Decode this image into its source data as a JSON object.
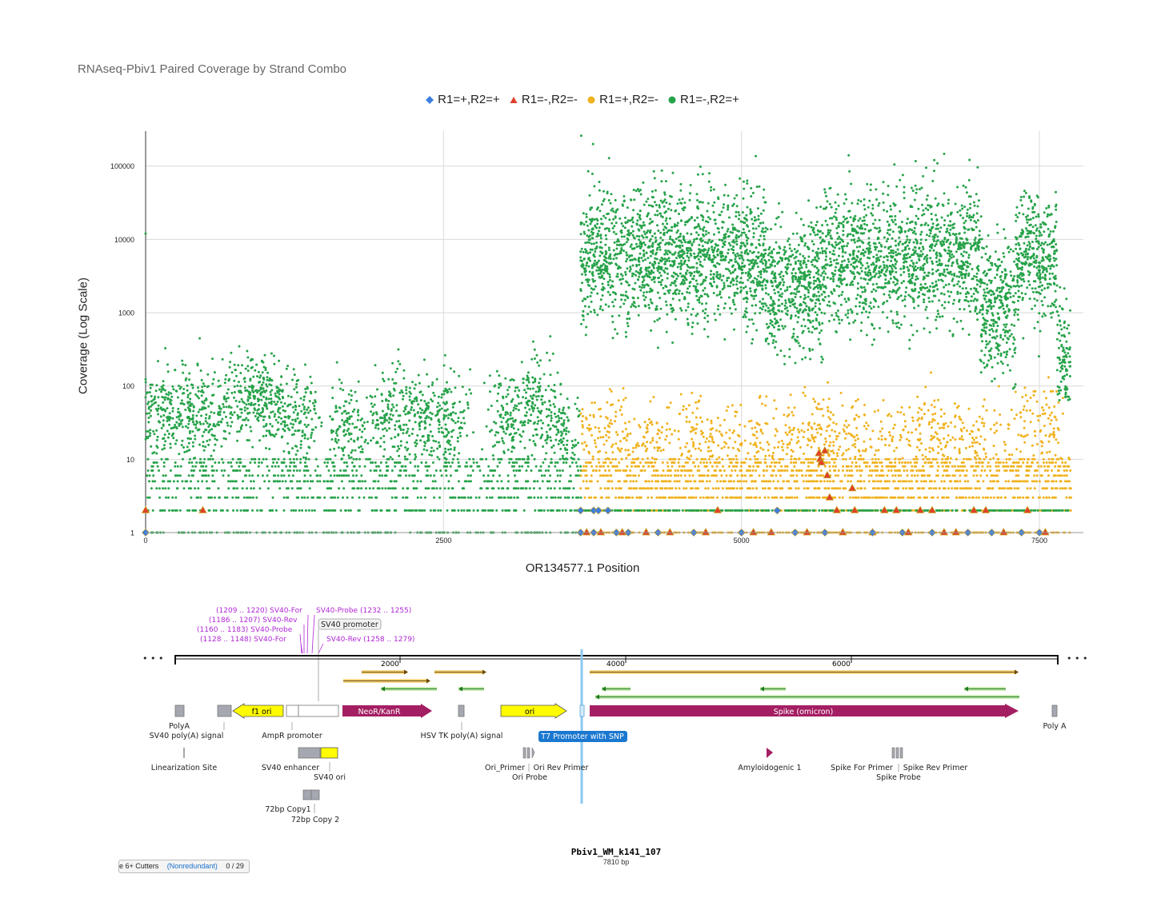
{
  "chart_data": {
    "type": "scatter",
    "title": "RNAseq-Pbiv1 Paired Coverage by Strand Combo",
    "xlabel": "OR134577.1 Position",
    "ylabel": "Coverage (Log Scale)",
    "yscale": "log",
    "xlim": [
      0,
      7810
    ],
    "ylim": [
      1,
      300000
    ],
    "xticks": [
      0,
      2500,
      5000,
      7500
    ],
    "yticks": [
      1,
      10,
      100,
      1000,
      10000,
      100000
    ],
    "grid": true,
    "legend_position": "top-center",
    "series": [
      {
        "name": "R1=+,R2=+",
        "marker": "diamond",
        "color": "#3d7fe0",
        "points": [
          [
            0,
            1
          ],
          [
            3650,
            1
          ],
          [
            3650,
            2
          ],
          [
            3760,
            1
          ],
          [
            3760,
            2
          ],
          [
            3800,
            2
          ],
          [
            3880,
            2
          ],
          [
            3950,
            1
          ],
          [
            4050,
            1
          ],
          [
            4300,
            1
          ],
          [
            4600,
            1
          ],
          [
            5000,
            1
          ],
          [
            5300,
            2
          ],
          [
            5450,
            1
          ],
          [
            5700,
            1
          ],
          [
            6100,
            1
          ],
          [
            6350,
            1
          ],
          [
            6600,
            1
          ],
          [
            6900,
            1
          ],
          [
            7100,
            1
          ],
          [
            7350,
            1
          ],
          [
            7500,
            1
          ]
        ]
      },
      {
        "name": "R1=-,R2=-",
        "marker": "triangle",
        "color": "#e0402a",
        "points": [
          [
            0,
            2
          ],
          [
            480,
            2
          ],
          [
            3700,
            1
          ],
          [
            3820,
            1
          ],
          [
            4000,
            1
          ],
          [
            4200,
            1
          ],
          [
            4400,
            1
          ],
          [
            4700,
            1
          ],
          [
            4800,
            2
          ],
          [
            5100,
            1
          ],
          [
            5250,
            1
          ],
          [
            5550,
            1
          ],
          [
            5650,
            12
          ],
          [
            5660,
            10
          ],
          [
            5670,
            9
          ],
          [
            5700,
            13
          ],
          [
            5720,
            6
          ],
          [
            5740,
            3
          ],
          [
            5800,
            2
          ],
          [
            5850,
            1
          ],
          [
            5930,
            4
          ],
          [
            5950,
            2
          ],
          [
            6100,
            1
          ],
          [
            6200,
            2
          ],
          [
            6300,
            2
          ],
          [
            6400,
            1
          ],
          [
            6500,
            2
          ],
          [
            6600,
            2
          ],
          [
            6700,
            1
          ],
          [
            6800,
            1
          ],
          [
            6950,
            2
          ],
          [
            7050,
            2
          ],
          [
            7200,
            1
          ],
          [
            7400,
            2
          ],
          [
            7550,
            1
          ]
        ]
      },
      {
        "name": "R1=+,R2=-",
        "marker": "circle",
        "color": "#f0b21e",
        "bands": [
          {
            "x": [
              3650,
              7760
            ],
            "y": [
              1,
              120
            ]
          }
        ]
      },
      {
        "name": "R1=-,R2=+",
        "marker": "circle",
        "color": "#27a34a",
        "bands": [
          {
            "x": [
              0,
              3650
            ],
            "y": [
              1,
              350
            ]
          },
          {
            "x": [
              3650,
              7760
            ],
            "y": [
              1,
              250000
            ]
          }
        ]
      }
    ]
  },
  "plasmid_map": {
    "name": "Pbiv1_WM_k141_107",
    "length_label": "7810 bp",
    "ruler_ticks": [
      "2000",
      "4000",
      "6000"
    ],
    "primer_labels": [
      {
        "range": "(1209 .. 1220)",
        "name": "SV40-For"
      },
      {
        "range": "(1232 .. 1255)",
        "name": "SV40-Probe"
      },
      {
        "range": "(1186 .. 1207)",
        "name": "SV40-Rev"
      },
      {
        "range": "(1160 .. 1183)",
        "name": "SV40-Probe"
      },
      {
        "range": "(1128 .. 1148)",
        "name": "SV40-For"
      },
      {
        "range": "(1258 .. 1279)",
        "name": "SV40-Rev"
      }
    ],
    "promoter_box": "SV40 promoter",
    "features": {
      "f1_ori": "f1 ori",
      "neo": "NeoR/KanR",
      "ori": "ori",
      "spike": "Spike (omicron)"
    },
    "labels": {
      "polya": "PolyA",
      "sv40_polya": "SV40 poly(A) signal",
      "ampr": "AmpR promoter",
      "hsv": "HSV TK poly(A) signal",
      "t7": "T7 Promoter with SNP",
      "polya2": "Poly A",
      "linearization": "Linearization Site",
      "sv40_enh": "SV40 enhancer",
      "sv40_ori": "SV40 ori",
      "ori_primer": "Ori_Primer",
      "ori_rev_primer": "Ori Rev Primer",
      "ori_probe": "Ori Probe",
      "amyloid": "Amyloidogenic 1",
      "spike_for": "Spike For Primer",
      "spike_rev": "Spike Rev Primer",
      "spike_probe": "Spike Probe",
      "copy1": "72bp Copy1",
      "copy2": "72bp Copy 2",
      "ellipsis_left": "• • •",
      "ellipsis_right": "• • •"
    }
  },
  "bottom_tab": {
    "label": "e 6+ Cutters",
    "link": "(Nonredundant)",
    "count": "0 / 29"
  }
}
